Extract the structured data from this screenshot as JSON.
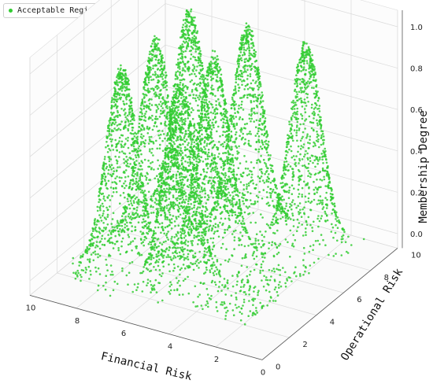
{
  "chart_data": {
    "type": "scatter3d",
    "legend": {
      "label": "Acceptable Region",
      "placement": "top-left"
    },
    "color": "#33cc33",
    "xlabel": "Financial Risk",
    "ylabel": "Operational Risk",
    "zlabel": "Membership Degree",
    "xlim": [
      0,
      10
    ],
    "ylim": [
      0,
      10
    ],
    "zlim": [
      0,
      1
    ],
    "x_ticks": [
      "10",
      "8",
      "6",
      "4",
      "2",
      "0"
    ],
    "y_ticks": [
      "0",
      "2",
      "4",
      "6",
      "8",
      "10"
    ],
    "z_ticks": [
      "0.0",
      "0.2",
      "0.4",
      "0.6",
      "0.8",
      "1.0"
    ],
    "grid": true,
    "peaks": [
      {
        "x": 7.5,
        "y": 2.5,
        "z": 1.0
      },
      {
        "x": 7.5,
        "y": 5.0,
        "z": 1.0
      },
      {
        "x": 7.5,
        "y": 7.5,
        "z": 1.0
      },
      {
        "x": 5.0,
        "y": 2.5,
        "z": 1.0
      },
      {
        "x": 5.0,
        "y": 5.0,
        "z": 1.0
      },
      {
        "x": 5.0,
        "y": 7.5,
        "z": 1.0
      },
      {
        "x": 2.5,
        "y": 7.5,
        "z": 1.0
      }
    ],
    "peak_width": 0.6
  }
}
